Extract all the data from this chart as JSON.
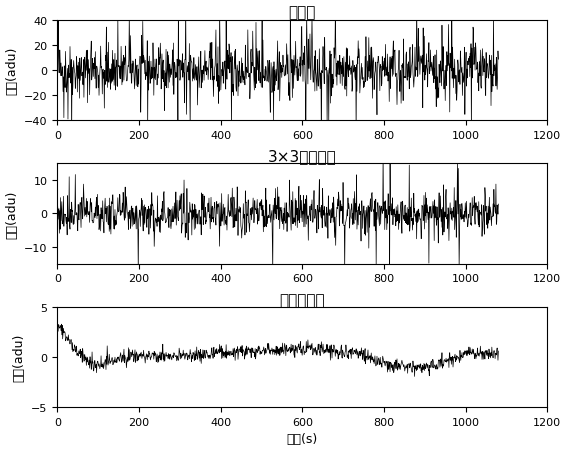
{
  "title1": "单像元",
  "title2": "3×3像元平均",
  "title3": "全靶面平均",
  "xlabel": "时间(s)",
  "ylabel": "读数(adu)",
  "xlim": [
    0,
    1200
  ],
  "xticks": [
    0,
    200,
    400,
    600,
    800,
    1000,
    1200
  ],
  "ylim1": [
    -40,
    40
  ],
  "yticks1": [
    -40,
    -20,
    0,
    20,
    40
  ],
  "ylim2": [
    -15,
    15
  ],
  "yticks2": [
    -10,
    0,
    10
  ],
  "ylim3": [
    -5,
    5
  ],
  "yticks3": [
    -5,
    0,
    5
  ],
  "n_points": 1080,
  "x_end": 1080,
  "noise1_std": 10,
  "noise1_spike_prob": 0.08,
  "noise1_spike_scale": 30,
  "noise2_std": 3.0,
  "noise2_spike_prob": 0.04,
  "noise2_spike_scale": 12,
  "noise3_std": 0.35,
  "line_color": "#000000",
  "line_width": 0.5,
  "bg_color": "#ffffff",
  "title_fontsize": 11,
  "label_fontsize": 9,
  "tick_fontsize": 8
}
